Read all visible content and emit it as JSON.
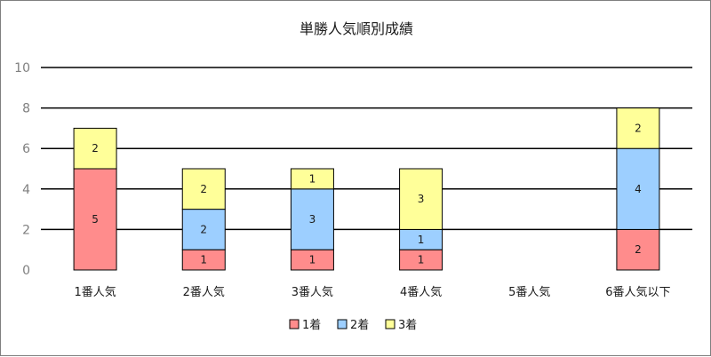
{
  "chart_data": {
    "type": "bar",
    "stacked": true,
    "title": "単勝人気順別成績",
    "xlabel": "",
    "ylabel": "",
    "categories": [
      "1番人気",
      "2番人気",
      "3番人気",
      "4番人気",
      "5番人気",
      "6番人気以下"
    ],
    "series": [
      {
        "name": "1着",
        "color": "#ff8c8c",
        "values": [
          5,
          1,
          1,
          1,
          0,
          2
        ]
      },
      {
        "name": "2着",
        "color": "#9dcfff",
        "values": [
          0,
          2,
          3,
          1,
          0,
          4
        ]
      },
      {
        "name": "3着",
        "color": "#ffff99",
        "values": [
          2,
          2,
          1,
          3,
          0,
          2
        ]
      }
    ],
    "ylim": [
      0,
      10
    ],
    "yticks": [
      0,
      2,
      4,
      6,
      8,
      10
    ],
    "grid": true,
    "legend_position": "bottom",
    "colors": {
      "gridline": "#000000",
      "bar_border": "#000000",
      "axis_text": "#7f7f7f"
    }
  }
}
